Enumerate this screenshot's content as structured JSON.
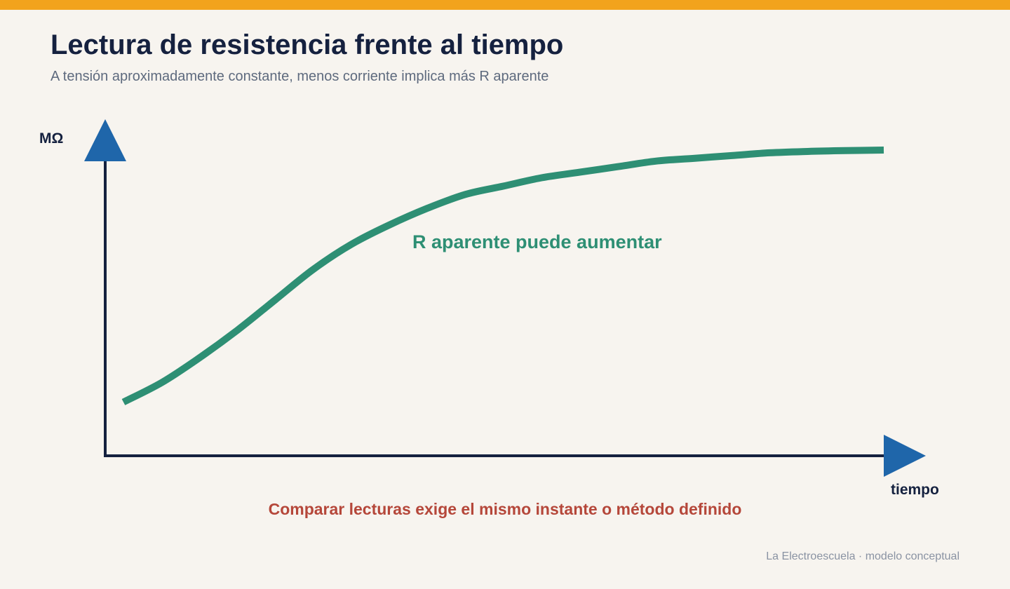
{
  "header": {
    "title": "Lectura de resistencia frente al tiempo",
    "subtitle": "A tensión aproximadamente constante, menos corriente implica más R aparente"
  },
  "footer": {
    "credit": "La Electroescuela · modelo conceptual"
  },
  "colors": {
    "accent_bar": "#f2a31c",
    "axis": "#15213f",
    "arrow": "#1f66aa",
    "curve": "#2e8f74",
    "note": "#b5473a",
    "background": "#f7f4ef"
  },
  "chart_data": {
    "type": "line",
    "title": "Lectura de resistencia frente al tiempo",
    "subtitle": "A tensión aproximadamente constante, menos corriente implica más R aparente",
    "xlabel": "tiempo",
    "ylabel": "MΩ",
    "xlim": [
      0,
      1
    ],
    "ylim": [
      0,
      1
    ],
    "grid": false,
    "ticks": false,
    "series": [
      {
        "x": [
          0.0,
          0.05,
          0.1,
          0.15,
          0.2,
          0.25,
          0.3,
          0.35,
          0.4,
          0.45,
          0.5,
          0.55,
          0.6,
          0.65,
          0.7,
          0.75,
          0.8,
          0.85,
          0.9,
          0.95,
          1.0
        ],
        "values": [
          0.09,
          0.16,
          0.25,
          0.35,
          0.46,
          0.57,
          0.66,
          0.73,
          0.79,
          0.84,
          0.87,
          0.9,
          0.92,
          0.94,
          0.96,
          0.97,
          0.98,
          0.99,
          0.995,
          0.998,
          1.0
        ]
      }
    ],
    "annotations": [
      {
        "text": "R aparente puede aumentar",
        "x": 0.55,
        "y": 0.72
      }
    ],
    "note": "Comparar lecturas exige el mismo instante o método definido"
  }
}
